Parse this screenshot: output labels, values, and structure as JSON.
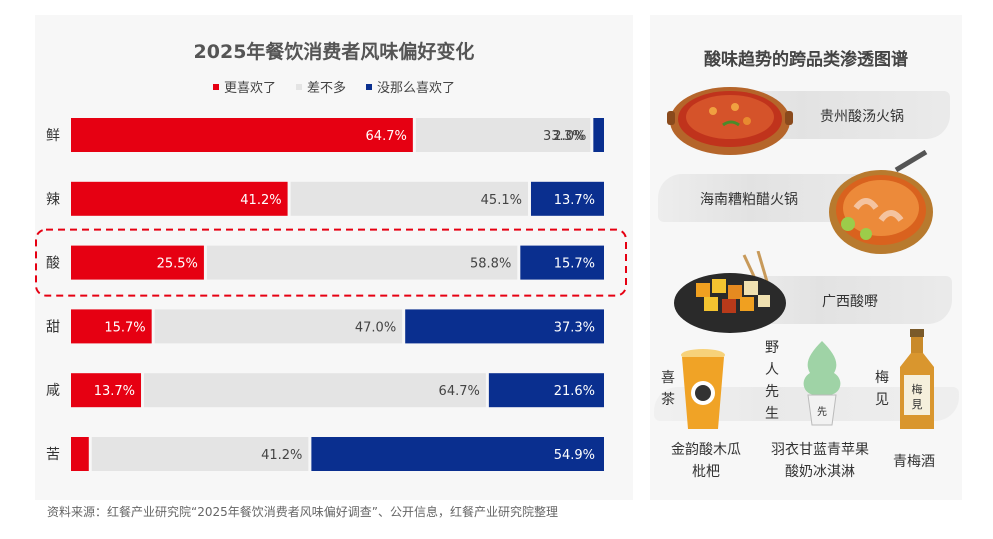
{
  "chart_data": {
    "type": "bar",
    "title": "2025年餐饮消费者风味偏好变化",
    "legend": [
      "更喜欢了",
      "差不多",
      "没那么喜欢了"
    ],
    "categories": [
      "鲜",
      "辣",
      "酸",
      "甜",
      "咸",
      "苦"
    ],
    "series": [
      {
        "name": "更喜欢了",
        "values": [
          64.7,
          41.2,
          25.5,
          15.7,
          13.7,
          3.9
        ],
        "labels": [
          "64.7%",
          "41.2%",
          "25.5%",
          "15.7%",
          "13.7%",
          "3.9%"
        ]
      },
      {
        "name": "差不多",
        "values": [
          33.3,
          45.1,
          58.8,
          47.0,
          64.7,
          41.2
        ],
        "labels": [
          "33.3%",
          "45.1%",
          "58.8%",
          "47.0%",
          "64.7%",
          "41.2%"
        ]
      },
      {
        "name": "没那么喜欢了",
        "values": [
          2.0,
          13.7,
          15.7,
          37.3,
          21.6,
          54.9
        ],
        "labels": [
          "2.0%",
          "13.7%",
          "15.7%",
          "37.3%",
          "21.6%",
          "54.9%"
        ]
      }
    ],
    "stacked": true,
    "orientation": "horizontal",
    "highlighted_category": "酸",
    "colors": {
      "更喜欢了": "#e60012",
      "差不多": "#e4e4e4",
      "没那么喜欢了": "#0a2f8f"
    }
  },
  "right_panel": {
    "title": "酸味趋势的跨品类渗透图谱",
    "dishes": [
      "贵州酸汤火锅",
      "海南糟粕醋火锅",
      "广西酸嘢"
    ],
    "products": [
      {
        "brand": "喜茶",
        "name_line1": "金韵酸木瓜",
        "name_line2": "枇杷"
      },
      {
        "brand": "野人先生",
        "name_line1": "羽衣甘蓝青苹果",
        "name_line2": "酸奶冰淇淋"
      },
      {
        "brand": "梅见",
        "name_line1": "青梅酒",
        "name_line2": ""
      }
    ]
  },
  "footnote": "资料来源：红餐产业研究院“2025年餐饮消费者风味偏好调查”、公开信息，红餐产业研究院整理"
}
